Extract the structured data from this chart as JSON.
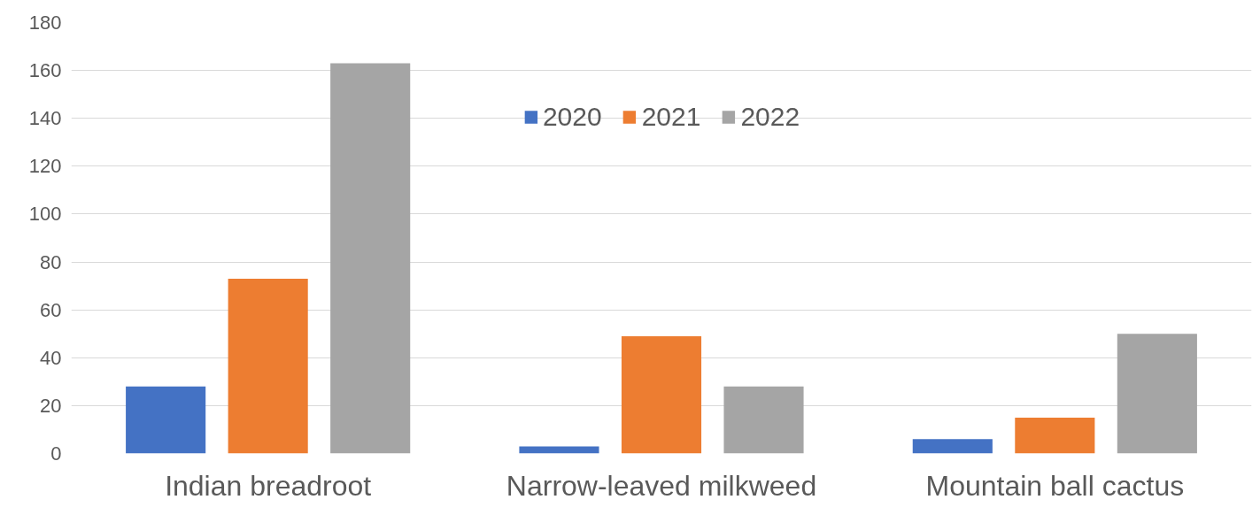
{
  "chart_data": {
    "type": "bar",
    "categories": [
      "Indian breadroot",
      "Narrow-leaved milkweed",
      "Mountain ball cactus"
    ],
    "series": [
      {
        "name": "2020",
        "color": "#4472c4",
        "values": [
          28,
          3,
          6
        ]
      },
      {
        "name": "2021",
        "color": "#ed7d31",
        "values": [
          73,
          49,
          15
        ]
      },
      {
        "name": "2022",
        "color": "#a5a5a5",
        "values": [
          163,
          28,
          50
        ]
      }
    ],
    "ylim": [
      0,
      180
    ],
    "yticks": [
      0,
      20,
      40,
      60,
      80,
      100,
      120,
      140,
      160,
      180
    ],
    "grid": "y",
    "legend": "top"
  }
}
